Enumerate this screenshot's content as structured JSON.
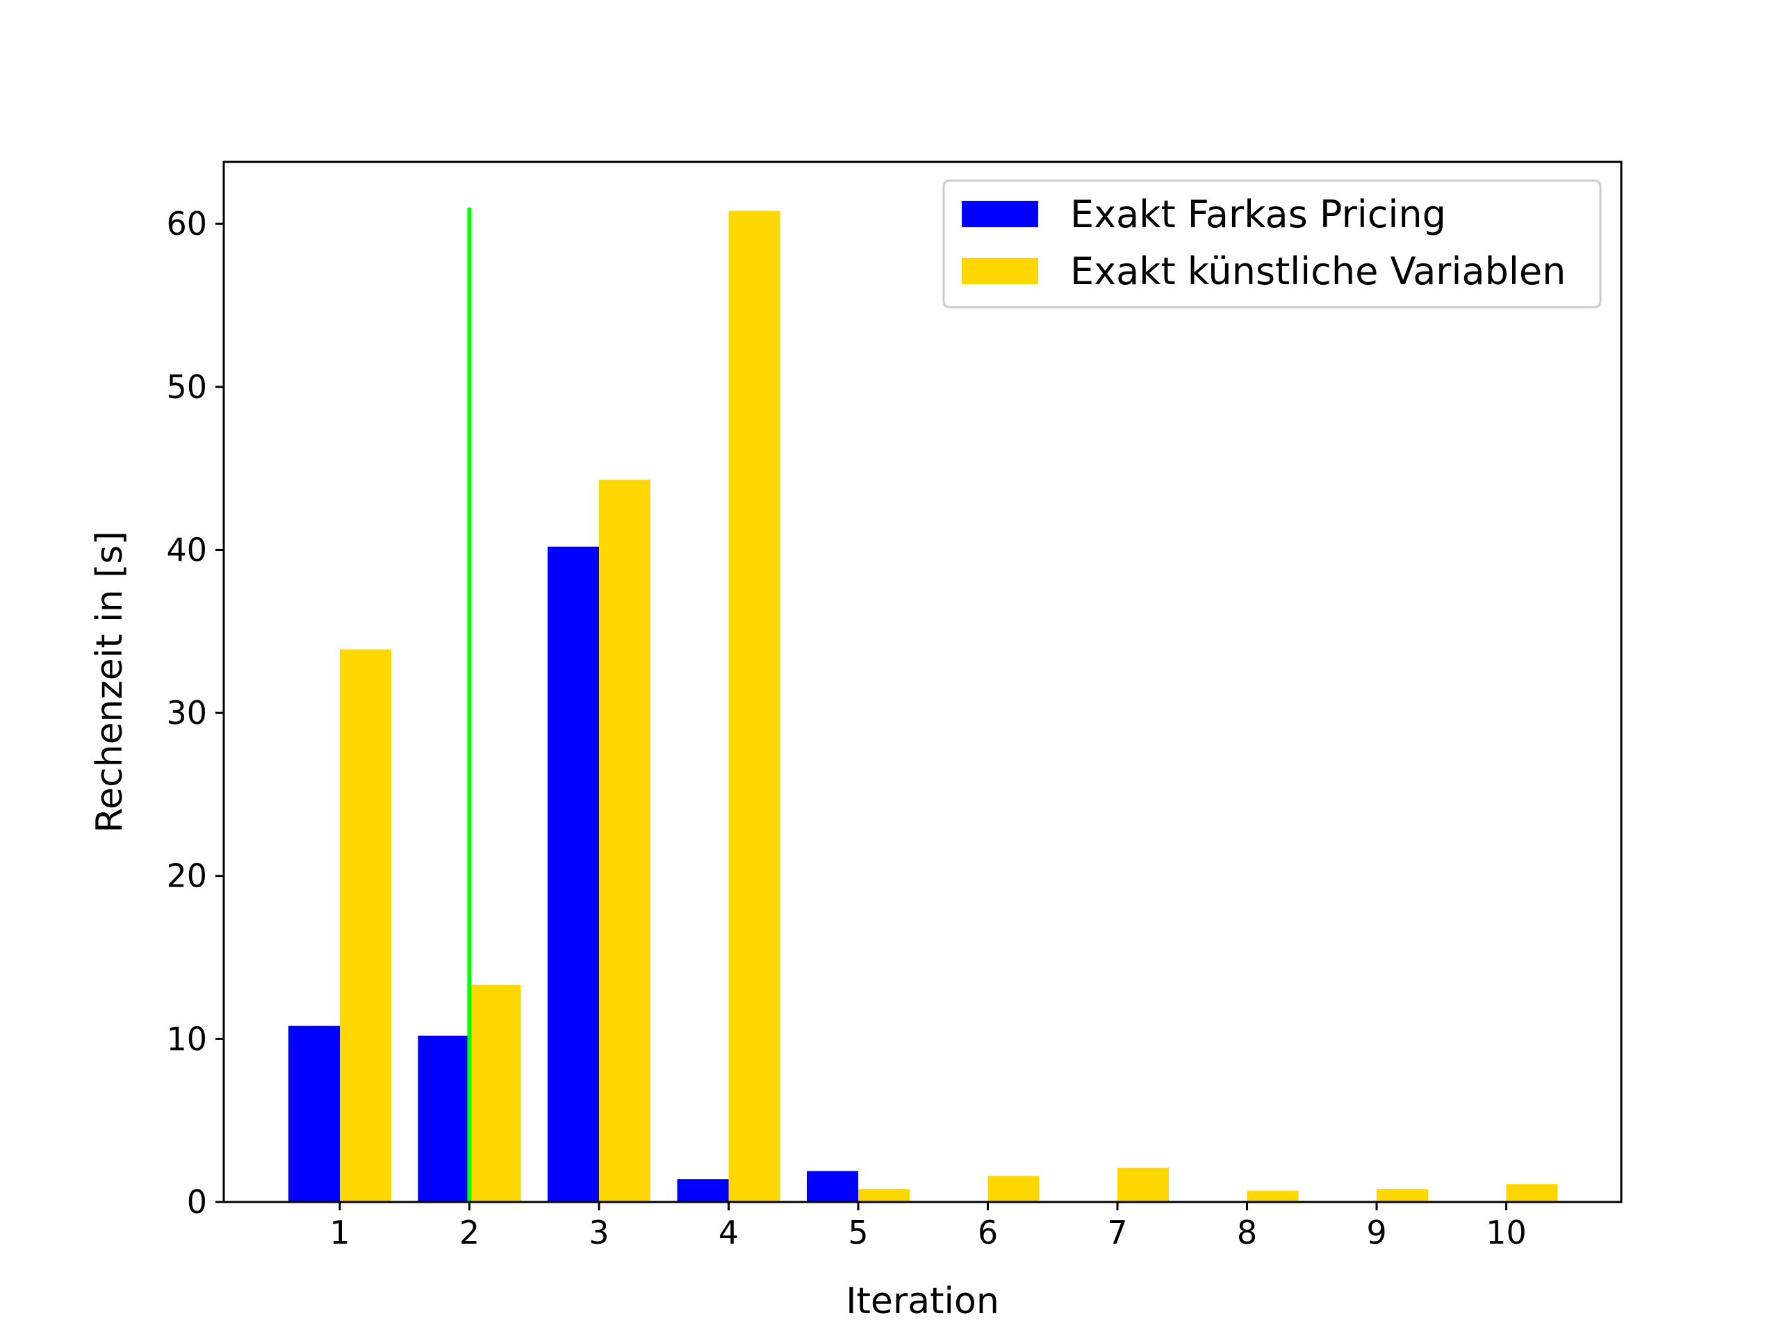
{
  "chart_data": {
    "type": "bar",
    "categories": [
      "1",
      "2",
      "3",
      "4",
      "5",
      "6",
      "7",
      "8",
      "9",
      "10"
    ],
    "series": [
      {
        "name": "Exakt Farkas Pricing",
        "color": "#0000ff",
        "values": [
          10.8,
          10.2,
          40.2,
          1.4,
          1.9,
          0,
          0,
          0,
          0,
          0
        ]
      },
      {
        "name": "Exakt künstliche Variablen",
        "color": "#ffd700",
        "values": [
          33.9,
          13.3,
          44.3,
          60.8,
          0.8,
          1.6,
          2.1,
          0.7,
          0.8,
          1.1
        ]
      }
    ],
    "marker_line": {
      "x": 2,
      "y_top": 61,
      "color": "#00ff00"
    },
    "title": "",
    "xlabel": "Iteration",
    "ylabel": "Rechenzeit in [s]",
    "ylim": [
      0,
      63.8
    ],
    "yticks": [
      0,
      10,
      20,
      30,
      40,
      50,
      60
    ],
    "grid": false,
    "legend_position": "top-right"
  }
}
